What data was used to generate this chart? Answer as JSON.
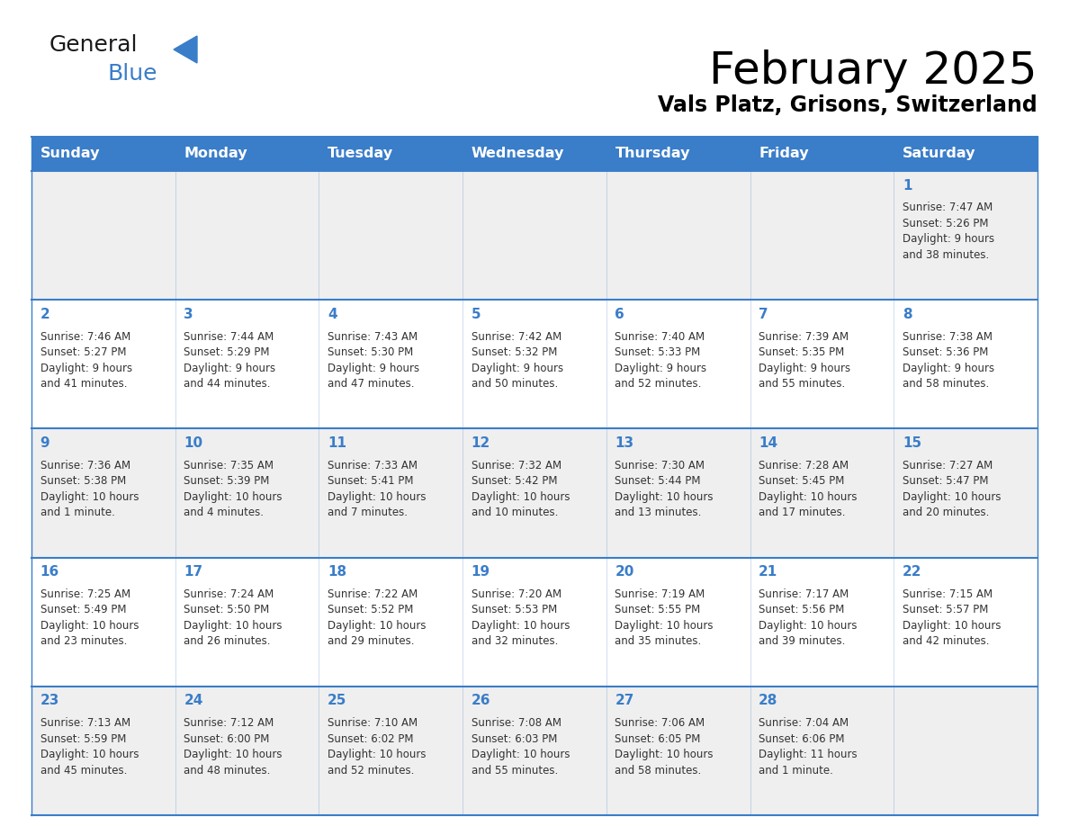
{
  "title": "February 2025",
  "subtitle": "Vals Platz, Grisons, Switzerland",
  "days_of_week": [
    "Sunday",
    "Monday",
    "Tuesday",
    "Wednesday",
    "Thursday",
    "Friday",
    "Saturday"
  ],
  "header_bg": "#3A7DC9",
  "header_text": "#FFFFFF",
  "row1_bg": "#EFEFEF",
  "row2_bg": "#FFFFFF",
  "title_color": "#000000",
  "subtitle_color": "#000000",
  "day_number_color": "#3A7DC9",
  "cell_text_color": "#333333",
  "grid_line_color": "#3A7DC9",
  "calendar_data": [
    [
      {
        "day": null,
        "info": ""
      },
      {
        "day": null,
        "info": ""
      },
      {
        "day": null,
        "info": ""
      },
      {
        "day": null,
        "info": ""
      },
      {
        "day": null,
        "info": ""
      },
      {
        "day": null,
        "info": ""
      },
      {
        "day": 1,
        "info": "Sunrise: 7:47 AM\nSunset: 5:26 PM\nDaylight: 9 hours\nand 38 minutes."
      }
    ],
    [
      {
        "day": 2,
        "info": "Sunrise: 7:46 AM\nSunset: 5:27 PM\nDaylight: 9 hours\nand 41 minutes."
      },
      {
        "day": 3,
        "info": "Sunrise: 7:44 AM\nSunset: 5:29 PM\nDaylight: 9 hours\nand 44 minutes."
      },
      {
        "day": 4,
        "info": "Sunrise: 7:43 AM\nSunset: 5:30 PM\nDaylight: 9 hours\nand 47 minutes."
      },
      {
        "day": 5,
        "info": "Sunrise: 7:42 AM\nSunset: 5:32 PM\nDaylight: 9 hours\nand 50 minutes."
      },
      {
        "day": 6,
        "info": "Sunrise: 7:40 AM\nSunset: 5:33 PM\nDaylight: 9 hours\nand 52 minutes."
      },
      {
        "day": 7,
        "info": "Sunrise: 7:39 AM\nSunset: 5:35 PM\nDaylight: 9 hours\nand 55 minutes."
      },
      {
        "day": 8,
        "info": "Sunrise: 7:38 AM\nSunset: 5:36 PM\nDaylight: 9 hours\nand 58 minutes."
      }
    ],
    [
      {
        "day": 9,
        "info": "Sunrise: 7:36 AM\nSunset: 5:38 PM\nDaylight: 10 hours\nand 1 minute."
      },
      {
        "day": 10,
        "info": "Sunrise: 7:35 AM\nSunset: 5:39 PM\nDaylight: 10 hours\nand 4 minutes."
      },
      {
        "day": 11,
        "info": "Sunrise: 7:33 AM\nSunset: 5:41 PM\nDaylight: 10 hours\nand 7 minutes."
      },
      {
        "day": 12,
        "info": "Sunrise: 7:32 AM\nSunset: 5:42 PM\nDaylight: 10 hours\nand 10 minutes."
      },
      {
        "day": 13,
        "info": "Sunrise: 7:30 AM\nSunset: 5:44 PM\nDaylight: 10 hours\nand 13 minutes."
      },
      {
        "day": 14,
        "info": "Sunrise: 7:28 AM\nSunset: 5:45 PM\nDaylight: 10 hours\nand 17 minutes."
      },
      {
        "day": 15,
        "info": "Sunrise: 7:27 AM\nSunset: 5:47 PM\nDaylight: 10 hours\nand 20 minutes."
      }
    ],
    [
      {
        "day": 16,
        "info": "Sunrise: 7:25 AM\nSunset: 5:49 PM\nDaylight: 10 hours\nand 23 minutes."
      },
      {
        "day": 17,
        "info": "Sunrise: 7:24 AM\nSunset: 5:50 PM\nDaylight: 10 hours\nand 26 minutes."
      },
      {
        "day": 18,
        "info": "Sunrise: 7:22 AM\nSunset: 5:52 PM\nDaylight: 10 hours\nand 29 minutes."
      },
      {
        "day": 19,
        "info": "Sunrise: 7:20 AM\nSunset: 5:53 PM\nDaylight: 10 hours\nand 32 minutes."
      },
      {
        "day": 20,
        "info": "Sunrise: 7:19 AM\nSunset: 5:55 PM\nDaylight: 10 hours\nand 35 minutes."
      },
      {
        "day": 21,
        "info": "Sunrise: 7:17 AM\nSunset: 5:56 PM\nDaylight: 10 hours\nand 39 minutes."
      },
      {
        "day": 22,
        "info": "Sunrise: 7:15 AM\nSunset: 5:57 PM\nDaylight: 10 hours\nand 42 minutes."
      }
    ],
    [
      {
        "day": 23,
        "info": "Sunrise: 7:13 AM\nSunset: 5:59 PM\nDaylight: 10 hours\nand 45 minutes."
      },
      {
        "day": 24,
        "info": "Sunrise: 7:12 AM\nSunset: 6:00 PM\nDaylight: 10 hours\nand 48 minutes."
      },
      {
        "day": 25,
        "info": "Sunrise: 7:10 AM\nSunset: 6:02 PM\nDaylight: 10 hours\nand 52 minutes."
      },
      {
        "day": 26,
        "info": "Sunrise: 7:08 AM\nSunset: 6:03 PM\nDaylight: 10 hours\nand 55 minutes."
      },
      {
        "day": 27,
        "info": "Sunrise: 7:06 AM\nSunset: 6:05 PM\nDaylight: 10 hours\nand 58 minutes."
      },
      {
        "day": 28,
        "info": "Sunrise: 7:04 AM\nSunset: 6:06 PM\nDaylight: 11 hours\nand 1 minute."
      },
      {
        "day": null,
        "info": ""
      }
    ]
  ]
}
